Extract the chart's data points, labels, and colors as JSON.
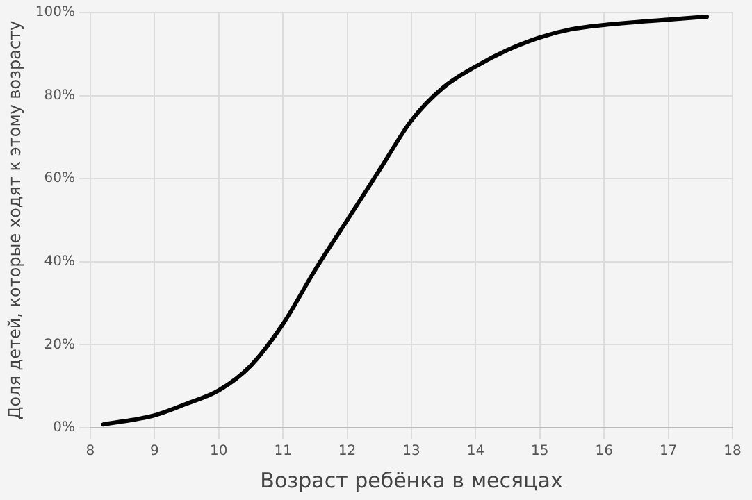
{
  "chart_data": {
    "type": "line",
    "xlabel": "Возраст ребёнка в месяцах",
    "ylabel": "Доля детей, которые ходят к этому возрасту",
    "x": [
      8.2,
      9,
      9.5,
      10,
      10.5,
      11,
      11.5,
      12,
      12.5,
      13,
      13.5,
      14,
      14.5,
      15,
      15.5,
      16,
      17,
      17.6
    ],
    "series": [
      {
        "color": "#000000",
        "values": [
          0.8,
          3,
          5.8,
          9,
          15,
          25,
          38,
          50,
          62,
          74,
          82,
          87,
          91,
          94,
          96,
          97,
          98.3,
          99
        ]
      }
    ],
    "xlim": [
      8,
      18
    ],
    "xticks": [
      8,
      9,
      10,
      11,
      12,
      13,
      14,
      15,
      16,
      17,
      18
    ],
    "ylim": [
      0,
      100
    ],
    "yticks": [
      {
        "value": 0,
        "label": "0%"
      },
      {
        "value": 20,
        "label": "20%"
      },
      {
        "value": 40,
        "label": "40%"
      },
      {
        "value": 60,
        "label": "60%"
      },
      {
        "value": 80,
        "label": "80%"
      },
      {
        "value": 100,
        "label": "100%"
      }
    ],
    "grid": true,
    "legend": false,
    "marker": "none",
    "line_style": "solid"
  }
}
